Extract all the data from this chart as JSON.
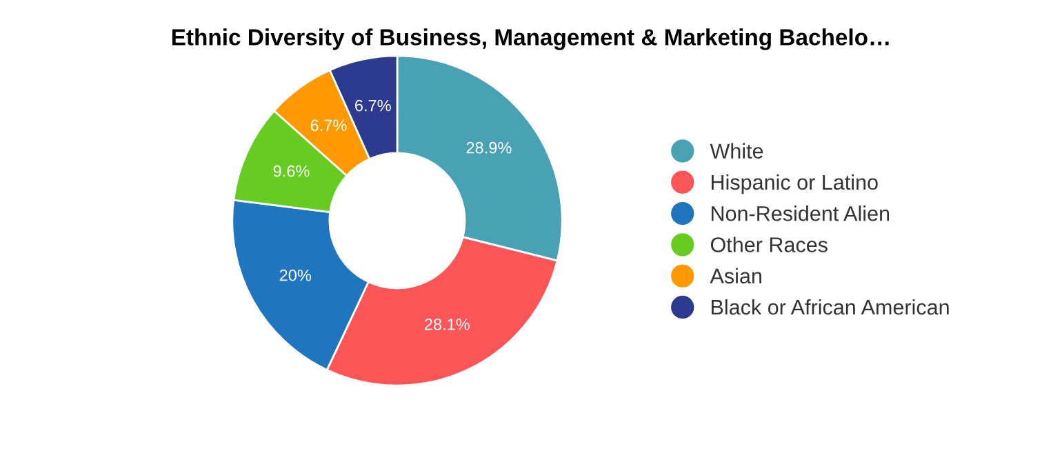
{
  "chart_data": {
    "type": "donut",
    "title": "Ethnic Diversity of Business, Management & Marketing Bachelo…",
    "categories": [
      "White",
      "Hispanic or Latino",
      "Non-Resident Alien",
      "Other Races",
      "Asian",
      "Black or African American"
    ],
    "values": [
      28.9,
      28.1,
      20,
      9.6,
      6.7,
      6.7
    ],
    "colors": [
      "#48a2b4",
      "#fc5558",
      "#1f76be",
      "#66cc22",
      "#ff9900",
      "#2c3b8e"
    ],
    "value_labels": [
      "28.9%",
      "28.1%",
      "20%",
      "9.6%",
      "6.7%",
      "6.7%"
    ],
    "legend": "right"
  }
}
